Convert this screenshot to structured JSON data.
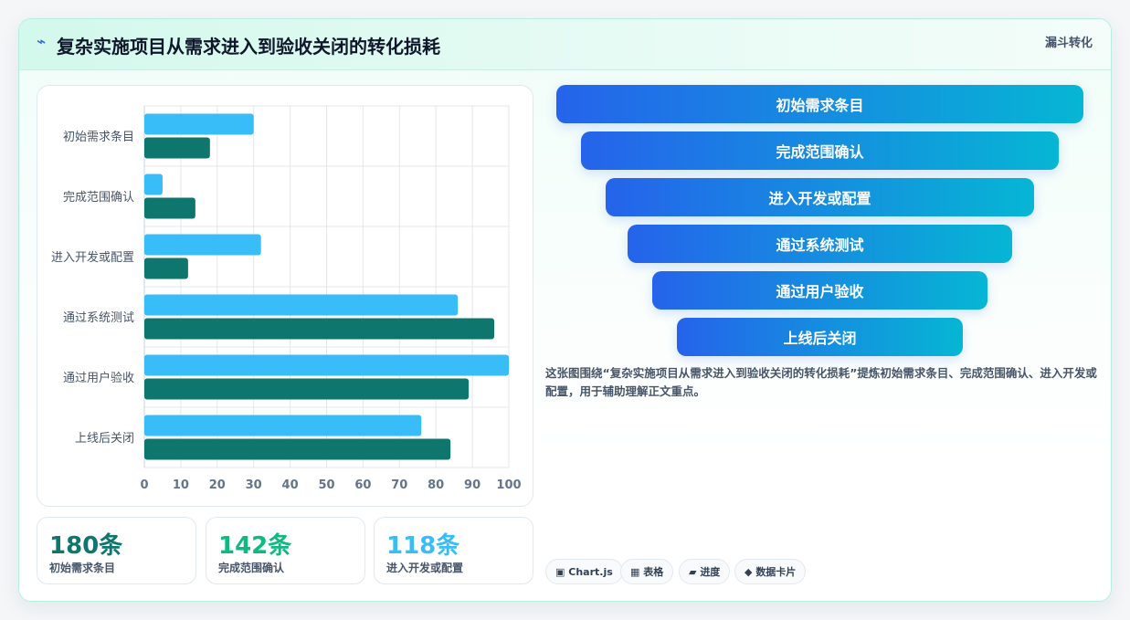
{
  "header": {
    "icon": "bolt-icon",
    "title": "复杂实施项目从需求进入到验收关闭的转化损耗",
    "tag": "漏斗转化"
  },
  "chart_data": {
    "type": "bar",
    "orientation": "horizontal",
    "categories": [
      "初始需求条目",
      "完成范围确认",
      "进入开发或配置",
      "通过系统测试",
      "通过用户验收",
      "上线后关闭"
    ],
    "series": [
      {
        "values": [
          30,
          5,
          32,
          86,
          100,
          76
        ],
        "color": "#38bdf8"
      },
      {
        "values": [
          18,
          14,
          12,
          96,
          89,
          84
        ],
        "color": "#0f766e"
      }
    ],
    "xlim": [
      0,
      100
    ],
    "xticks": [
      0,
      10,
      20,
      30,
      40,
      50,
      60,
      70,
      80,
      90,
      100
    ],
    "grid": true,
    "legend": "none"
  },
  "stats": [
    {
      "value": "180条",
      "label": "初始需求条目",
      "color": "#0f766e"
    },
    {
      "value": "142条",
      "label": "完成范围确认",
      "color": "#10b981"
    },
    {
      "value": "118条",
      "label": "进入开发或配置",
      "color": "#38bdf8"
    }
  ],
  "funnel": {
    "steps": [
      "初始需求条目",
      "完成范围确认",
      "进入开发或配置",
      "通过系统测试",
      "通过用户验收",
      "上线后关闭"
    ]
  },
  "description": "这张图围绕“复杂实施项目从需求进入到验收关闭的转化损耗”提炼初始需求条目、完成范围确认、进入开发或配置，用于辅助理解正文重点。",
  "chips": [
    {
      "icon": "chart-icon",
      "glyph": "▣",
      "label": "Chart.js"
    },
    {
      "icon": "table-icon",
      "glyph": "▦",
      "label": "表格"
    },
    {
      "icon": "progress-icon",
      "glyph": "▰",
      "label": "进度"
    },
    {
      "icon": "data-card-icon",
      "glyph": "◆",
      "label": "数据卡片"
    }
  ]
}
